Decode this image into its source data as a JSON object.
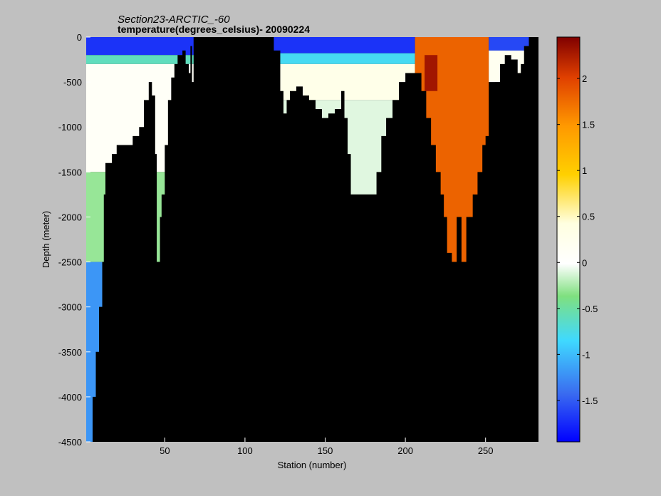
{
  "chart_data": {
    "type": "heatmap",
    "title": "Section23-ARCTIC_-60",
    "subtitle": "temperature(degrees_celsius)- 20090224",
    "xlabel": "Station (number)",
    "ylabel": "Depth (meter)",
    "xlim": [
      1,
      283
    ],
    "ylim": [
      -4500,
      0
    ],
    "x_ticks": [
      50,
      100,
      150,
      200,
      250
    ],
    "y_ticks": [
      0,
      -500,
      -1000,
      -1500,
      -2000,
      -2500,
      -3000,
      -3500,
      -4000,
      -4500
    ],
    "colorbar": {
      "range": [
        -1.95,
        2.45
      ],
      "ticks": [
        -1.5,
        -1,
        -0.5,
        0,
        0.5,
        1,
        1.5,
        2
      ],
      "colormap": "jet-white-center"
    },
    "background_color": "#000000",
    "bottom_depth_profile": [
      {
        "x": 1,
        "depth": -4500
      },
      {
        "x": 4,
        "depth": -4500
      },
      {
        "x": 5,
        "depth": -4000
      },
      {
        "x": 7,
        "depth": -3500
      },
      {
        "x": 9,
        "depth": -3000
      },
      {
        "x": 11,
        "depth": -2500
      },
      {
        "x": 12,
        "depth": -1750
      },
      {
        "x": 13,
        "depth": -1400
      },
      {
        "x": 17,
        "depth": -1300
      },
      {
        "x": 20,
        "depth": -1200
      },
      {
        "x": 27,
        "depth": -1200
      },
      {
        "x": 30,
        "depth": -1100
      },
      {
        "x": 34,
        "depth": -1000
      },
      {
        "x": 37,
        "depth": -700
      },
      {
        "x": 40,
        "depth": -500
      },
      {
        "x": 42,
        "depth": -650
      },
      {
        "x": 44,
        "depth": -1300
      },
      {
        "x": 45,
        "depth": -2500
      },
      {
        "x": 47,
        "depth": -2000
      },
      {
        "x": 48,
        "depth": -1750
      },
      {
        "x": 50,
        "depth": -1200
      },
      {
        "x": 52,
        "depth": -700
      },
      {
        "x": 54,
        "depth": -450
      },
      {
        "x": 56,
        "depth": -300
      },
      {
        "x": 58,
        "depth": -200
      },
      {
        "x": 61,
        "depth": -150
      },
      {
        "x": 63,
        "depth": -300
      },
      {
        "x": 65,
        "depth": -400
      },
      {
        "x": 66,
        "depth": -100
      },
      {
        "x": 67,
        "depth": -500
      },
      {
        "x": 68,
        "depth": 0
      },
      {
        "x": 116,
        "depth": 0
      },
      {
        "x": 118,
        "depth": -150
      },
      {
        "x": 122,
        "depth": -600
      },
      {
        "x": 124,
        "depth": -850
      },
      {
        "x": 126,
        "depth": -700
      },
      {
        "x": 128,
        "depth": -600
      },
      {
        "x": 132,
        "depth": -550
      },
      {
        "x": 136,
        "depth": -650
      },
      {
        "x": 140,
        "depth": -700
      },
      {
        "x": 144,
        "depth": -800
      },
      {
        "x": 148,
        "depth": -900
      },
      {
        "x": 152,
        "depth": -850
      },
      {
        "x": 156,
        "depth": -800
      },
      {
        "x": 160,
        "depth": -600
      },
      {
        "x": 162,
        "depth": -900
      },
      {
        "x": 164,
        "depth": -1300
      },
      {
        "x": 166,
        "depth": -1750
      },
      {
        "x": 180,
        "depth": -1750
      },
      {
        "x": 182,
        "depth": -1500
      },
      {
        "x": 185,
        "depth": -1100
      },
      {
        "x": 188,
        "depth": -900
      },
      {
        "x": 192,
        "depth": -700
      },
      {
        "x": 196,
        "depth": -500
      },
      {
        "x": 200,
        "depth": -400
      },
      {
        "x": 206,
        "depth": -400
      },
      {
        "x": 210,
        "depth": -600
      },
      {
        "x": 213,
        "depth": -900
      },
      {
        "x": 216,
        "depth": -1200
      },
      {
        "x": 219,
        "depth": -1500
      },
      {
        "x": 222,
        "depth": -1750
      },
      {
        "x": 224,
        "depth": -2000
      },
      {
        "x": 226,
        "depth": -2400
      },
      {
        "x": 229,
        "depth": -2500
      },
      {
        "x": 232,
        "depth": -2000
      },
      {
        "x": 235,
        "depth": -2500
      },
      {
        "x": 238,
        "depth": -2000
      },
      {
        "x": 242,
        "depth": -1750
      },
      {
        "x": 245,
        "depth": -1500
      },
      {
        "x": 248,
        "depth": -1200
      },
      {
        "x": 250,
        "depth": -1100
      },
      {
        "x": 253,
        "depth": -800
      },
      {
        "x": 256,
        "depth": -500
      },
      {
        "x": 259,
        "depth": -300
      },
      {
        "x": 262,
        "depth": -200
      },
      {
        "x": 266,
        "depth": -250
      },
      {
        "x": 270,
        "depth": -400
      },
      {
        "x": 272,
        "depth": -300
      },
      {
        "x": 274,
        "depth": -100
      },
      {
        "x": 277,
        "depth": 0
      },
      {
        "x": 283,
        "depth": 0
      }
    ],
    "temperature_layers": [
      {
        "x_from": 1,
        "x_to": 68,
        "depth_from": 0,
        "depth_to": -200,
        "temperature": -1.7
      },
      {
        "x_from": 1,
        "x_to": 68,
        "depth_from": -200,
        "depth_to": -300,
        "temperature": -0.6
      },
      {
        "x_from": 1,
        "x_to": 68,
        "depth_from": -300,
        "depth_to": -1500,
        "temperature": 0.1
      },
      {
        "x_from": 1,
        "x_to": 68,
        "depth_from": -1500,
        "depth_to": -2500,
        "temperature": -0.3
      },
      {
        "x_from": 1,
        "x_to": 68,
        "depth_from": -2500,
        "depth_to": -4500,
        "temperature": -1.2
      },
      {
        "x_from": 116,
        "x_to": 206,
        "depth_from": 0,
        "depth_to": -180,
        "temperature": -1.7
      },
      {
        "x_from": 116,
        "x_to": 206,
        "depth_from": -180,
        "depth_to": -300,
        "temperature": -0.8
      },
      {
        "x_from": 116,
        "x_to": 206,
        "depth_from": -300,
        "depth_to": -700,
        "temperature": 0.3
      },
      {
        "x_from": 116,
        "x_to": 206,
        "depth_from": -700,
        "depth_to": -1750,
        "temperature": -0.1
      },
      {
        "x_from": 206,
        "x_to": 252,
        "depth_from": 0,
        "depth_to": -2500,
        "temperature": 1.8
      },
      {
        "x_from": 212,
        "x_to": 220,
        "depth_from": -200,
        "depth_to": -600,
        "temperature": 2.3
      },
      {
        "x_from": 252,
        "x_to": 283,
        "depth_from": 0,
        "depth_to": -150,
        "temperature": -1.6
      },
      {
        "x_from": 252,
        "x_to": 283,
        "depth_from": -150,
        "depth_to": -500,
        "temperature": 0.2
      }
    ]
  }
}
